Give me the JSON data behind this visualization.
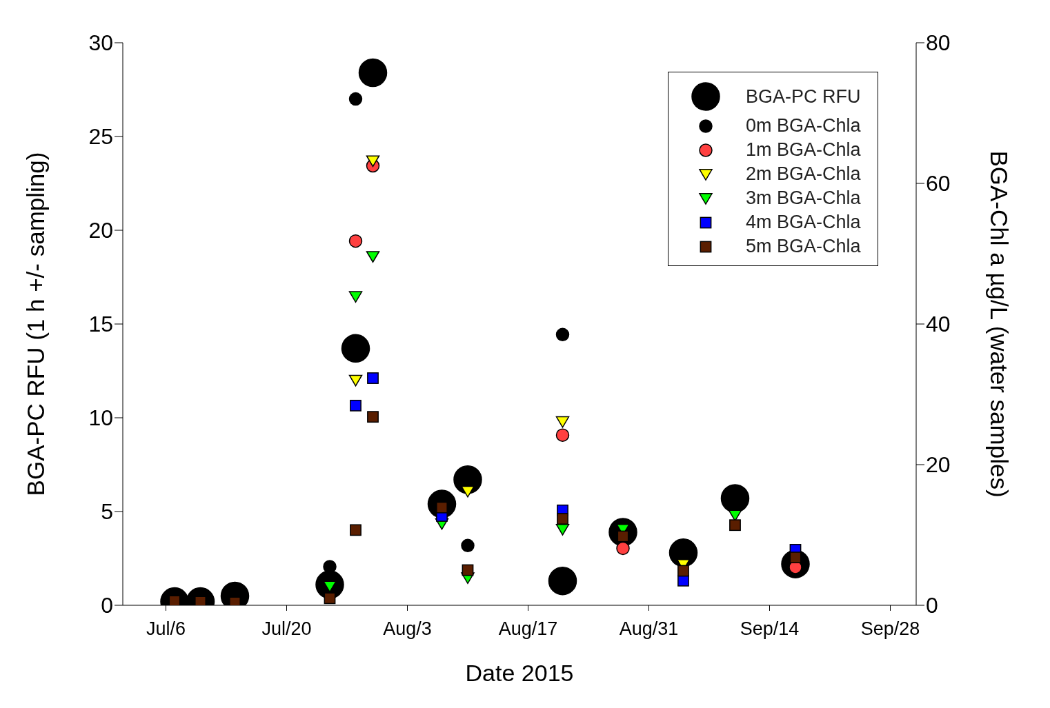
{
  "chart_data": {
    "type": "scatter",
    "xlabel": "Date 2015",
    "ylabel": "BGA-PC RFU (1 h +/- sampling)",
    "y2label": "BGA-Chl a µg/L (water samples)",
    "x": [
      "2015-07-07",
      "2015-07-10",
      "2015-07-14",
      "2015-07-25",
      "2015-07-28",
      "2015-07-30",
      "2015-08-07",
      "2015-08-10",
      "2015-08-21",
      "2015-08-28",
      "2015-09-04",
      "2015-09-10",
      "2015-09-17"
    ],
    "xlim": [
      "2015-07-01",
      "2015-10-01"
    ],
    "xticks": [
      {
        "value": "2015-07-06",
        "label": "Jul/6"
      },
      {
        "value": "2015-07-20",
        "label": "Jul/20"
      },
      {
        "value": "2015-08-03",
        "label": "Aug/3"
      },
      {
        "value": "2015-08-17",
        "label": "Aug/17"
      },
      {
        "value": "2015-08-31",
        "label": "Aug/31"
      },
      {
        "value": "2015-09-14",
        "label": "Sep/14"
      },
      {
        "value": "2015-09-28",
        "label": "Sep/28"
      }
    ],
    "ylim": [
      0,
      30
    ],
    "yticks": [
      0,
      5,
      10,
      15,
      20,
      25,
      30
    ],
    "y2lim": [
      0,
      80
    ],
    "y2ticks": [
      0,
      20,
      40,
      60,
      80
    ],
    "grid": false,
    "legend": "top right",
    "series": [
      {
        "name": "BGA-PC RFU",
        "color": "#000000",
        "marker": "circle",
        "values": [
          0.2,
          0.2,
          0.5,
          1.1,
          13.7,
          28.4,
          5.4,
          6.7,
          1.3,
          3.9,
          2.8,
          5.7,
          2.2
        ]
      },
      {
        "name": "0m BGA-Chla",
        "color": "#000000",
        "marker": "circle",
        "axis": "y2",
        "values": [
          null,
          null,
          null,
          5.5,
          72,
          null,
          null,
          8.5,
          38.5,
          null,
          null,
          null,
          null
        ]
      },
      {
        "name": "1m BGA-Chla",
        "color": "#ff4040",
        "marker": "circle",
        "axis": "y2",
        "values": [
          null,
          null,
          null,
          null,
          51.8,
          62.5,
          null,
          null,
          24.2,
          8.1,
          null,
          null,
          5.4
        ]
      },
      {
        "name": "2m BGA-Chla",
        "color": "#ffff00",
        "marker": "triangle",
        "axis": "y2",
        "values": [
          null,
          null,
          null,
          null,
          32,
          63.2,
          null,
          16.2,
          26.1,
          null,
          5.8,
          null,
          null
        ]
      },
      {
        "name": "3m BGA-Chla",
        "color": "#00ff00",
        "marker": "triangle",
        "axis": "y2",
        "values": [
          null,
          null,
          null,
          2.7,
          43.9,
          49.6,
          11.6,
          3.9,
          10.8,
          10.8,
          null,
          12.8,
          null
        ]
      },
      {
        "name": "4m BGA-Chla",
        "color": "#0000ff",
        "marker": "square",
        "axis": "y2",
        "values": [
          null,
          null,
          null,
          null,
          28.4,
          32.3,
          12.7,
          null,
          13.5,
          null,
          3.5,
          null,
          7.9
        ]
      },
      {
        "name": "5m BGA-Chla",
        "color": "#5a1e00",
        "marker": "square",
        "axis": "y2",
        "values": [
          0.6,
          0.5,
          0.4,
          1.0,
          10.7,
          26.8,
          13.9,
          5.0,
          12.3,
          9.8,
          4.9,
          11.4,
          6.8
        ]
      }
    ]
  }
}
